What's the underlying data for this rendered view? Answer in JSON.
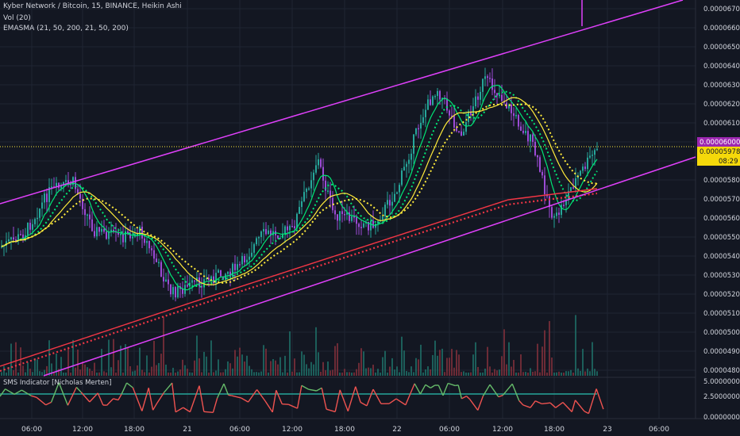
{
  "header": {
    "title": "Kyber Network / Bitcoin, 15, BINANCE, Heikin Ashi",
    "vol_label": "Vol (20)",
    "ema_label": "EMASMA (21, 50, 200, 21, 50, 200)",
    "sms_label": "SMS Indicator [Nicholas Merten]"
  },
  "colors": {
    "background": "#131722",
    "grid": "#1f2433",
    "channel": "#e040fb",
    "candle_up": "#26a69a",
    "candle_down": "#9c4bd6",
    "sma_fast": "#00e676",
    "ema_slow": "#ffeb3b",
    "ma_200": "#f23645",
    "sms_high": "#66bb6a",
    "sms_low": "#ef5350",
    "sms_threshold": "#26a69a"
  },
  "chart_data": {
    "type": "candlestick",
    "price_axis": {
      "ticks": [
        "0.00006700",
        "0.00006600",
        "0.00006500",
        "0.00006400",
        "0.00006300",
        "0.00006200",
        "0.00006100",
        "0.00006000",
        "0.00005900",
        "0.00005800",
        "0.00005700",
        "0.00005600",
        "0.00005500",
        "0.00005400",
        "0.00005300",
        "0.00005200",
        "0.00005100",
        "0.00005000",
        "0.00004900",
        "0.00004800"
      ],
      "ylim": [
        4.78e-05,
        6.76e-05
      ]
    },
    "time_axis": {
      "ticks": [
        "06:00",
        "12:00",
        "18:00",
        "21",
        "06:00",
        "12:00",
        "18:00",
        "22",
        "06:00",
        "12:00",
        "18:00",
        "23",
        "06:00"
      ]
    },
    "current_price_label": "0.00006000",
    "last_price_label": "0.00005978",
    "countdown_label": "08:29",
    "sms_axis": {
      "ticks": [
        "5.00000000",
        "2.50000000",
        "0.00000000"
      ],
      "ylim": [
        0,
        5
      ]
    }
  }
}
